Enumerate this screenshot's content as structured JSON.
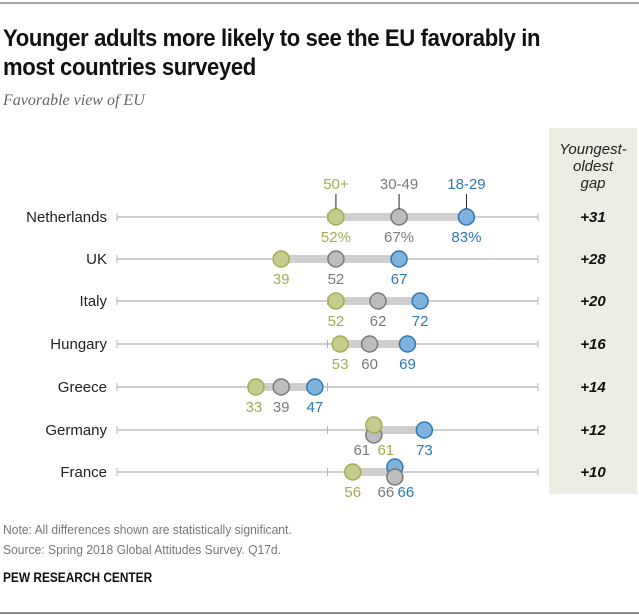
{
  "header": {
    "title": "Younger adults more likely to see the EU favorably in most countries surveyed",
    "title_line1": "Younger adults more likely to see the EU favorably in",
    "title_line2": "most countries surveyed",
    "subtitle": "Favorable view of EU"
  },
  "footer": {
    "note": "Note: All differences shown are statistically significant.",
    "source": "Source: Spring 2018 Global Attitudes Survey. Q17d.",
    "org": "PEW RESEARCH CENTER"
  },
  "chart_data": {
    "type": "dot-plot",
    "title": "Younger adults more likely to see the EU favorably in most countries surveyed",
    "subtitle": "Favorable view of EU",
    "xlim": [
      0,
      100
    ],
    "unit": "%",
    "gap_column_header": "Youngest-oldest gap",
    "gap_header_lines": [
      "Youngest-",
      "oldest",
      "gap"
    ],
    "series": [
      {
        "name": "50+",
        "color": "#a4ab52",
        "fill": "#c6cc8e"
      },
      {
        "name": "30-49",
        "color": "#7a7a7a",
        "fill": "#bdbdbd"
      },
      {
        "name": "18-29",
        "color": "#2e78b3",
        "fill": "#80b2de"
      }
    ],
    "categories": [
      "Netherlands",
      "UK",
      "Italy",
      "Hungary",
      "Greece",
      "Germany",
      "France"
    ],
    "rows": [
      {
        "country": "Netherlands",
        "v50": 52,
        "v30": 67,
        "v18": 83,
        "labels": [
          "52%",
          "67%",
          "83%"
        ],
        "gap": "+31"
      },
      {
        "country": "UK",
        "v50": 39,
        "v30": 52,
        "v18": 67,
        "labels": [
          "39",
          "52",
          "67"
        ],
        "gap": "+28"
      },
      {
        "country": "Italy",
        "v50": 52,
        "v30": 62,
        "v18": 72,
        "labels": [
          "52",
          "62",
          "72"
        ],
        "gap": "+20"
      },
      {
        "country": "Hungary",
        "v50": 53,
        "v30": 60,
        "v18": 69,
        "labels": [
          "53",
          "60",
          "69"
        ],
        "gap": "+16"
      },
      {
        "country": "Greece",
        "v50": 33,
        "v30": 39,
        "v18": 47,
        "labels": [
          "33",
          "39",
          "47"
        ],
        "gap": "+14"
      },
      {
        "country": "Germany",
        "v50": 61,
        "v30": 61,
        "v18": 73,
        "labels": [
          "61",
          "61",
          "73"
        ],
        "gap": "+12"
      },
      {
        "country": "France",
        "v50": 56,
        "v30": 66,
        "v18": 66,
        "labels": [
          "56",
          "66",
          "66"
        ],
        "gap": "+10"
      }
    ],
    "colors": {
      "gap_panel": "#eeede4",
      "axis_line": "#b5b5b5",
      "range_bar": "#cfcfcf"
    }
  }
}
